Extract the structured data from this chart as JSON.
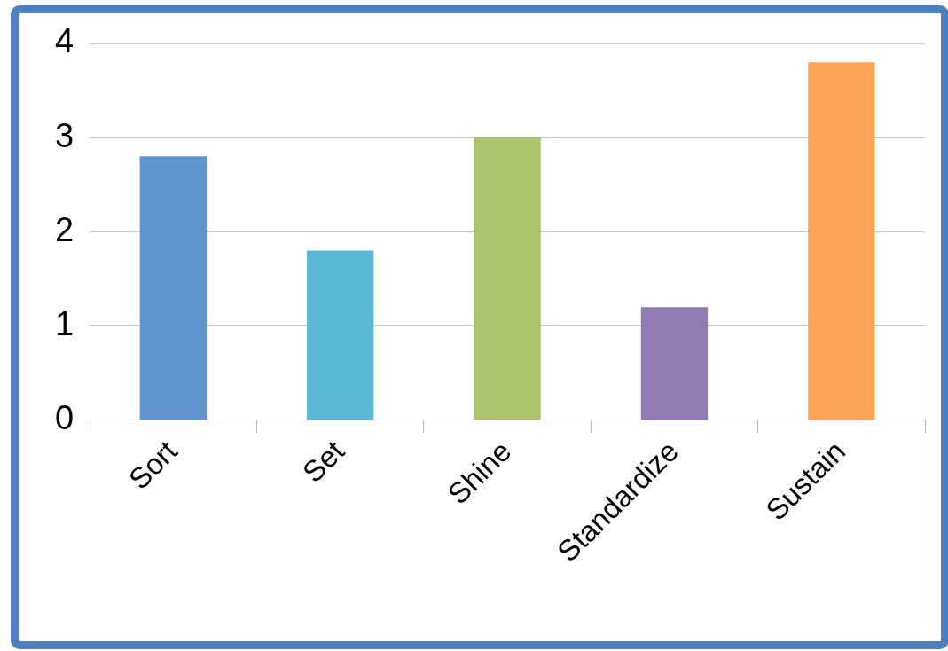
{
  "chart_data": {
    "type": "bar",
    "categories": [
      "Sort",
      "Set",
      "Shine",
      "Standardize",
      "Sustain"
    ],
    "values": [
      2.8,
      1.8,
      3.0,
      1.2,
      3.8
    ],
    "colors": [
      "#5f94cc",
      "#5bb7d3",
      "#acc46e",
      "#917bb3",
      "#fba656"
    ],
    "ylim": [
      0,
      4
    ],
    "yticks": [
      0,
      1,
      2,
      3,
      4
    ],
    "grid": "y",
    "legend": false
  }
}
